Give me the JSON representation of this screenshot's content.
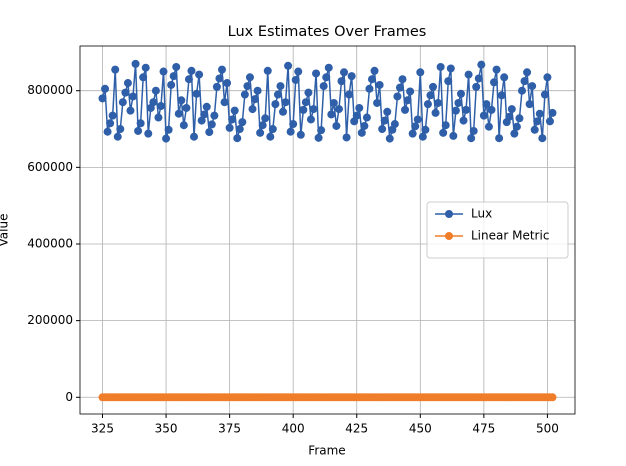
{
  "chart_data": {
    "type": "line",
    "title": "Lux Estimates Over Frames",
    "x_label": "Frame",
    "y_label": "Value",
    "x": [
      325,
      326,
      327,
      328,
      329,
      330,
      331,
      332,
      333,
      334,
      335,
      336,
      337,
      338,
      339,
      340,
      341,
      342,
      343,
      344,
      345,
      346,
      347,
      348,
      349,
      350,
      351,
      352,
      353,
      354,
      355,
      356,
      357,
      358,
      359,
      360,
      361,
      362,
      363,
      364,
      365,
      366,
      367,
      368,
      369,
      370,
      371,
      372,
      373,
      374,
      375,
      376,
      377,
      378,
      379,
      380,
      381,
      382,
      383,
      384,
      385,
      386,
      387,
      388,
      389,
      390,
      391,
      392,
      393,
      394,
      395,
      396,
      397,
      398,
      399,
      400,
      401,
      402,
      403,
      404,
      405,
      406,
      407,
      408,
      409,
      410,
      411,
      412,
      413,
      414,
      415,
      416,
      417,
      418,
      419,
      420,
      421,
      422,
      423,
      424,
      425,
      426,
      427,
      428,
      429,
      430,
      431,
      432,
      433,
      434,
      435,
      436,
      437,
      438,
      439,
      440,
      441,
      442,
      443,
      444,
      445,
      446,
      447,
      448,
      449,
      450,
      451,
      452,
      453,
      454,
      455,
      456,
      457,
      458,
      459,
      460,
      461,
      462,
      463,
      464,
      465,
      466,
      467,
      468,
      469,
      470,
      471,
      472,
      473,
      474,
      475,
      476,
      477,
      478,
      479,
      480,
      481,
      482,
      483,
      484,
      485,
      486,
      487,
      488,
      489,
      490,
      491,
      492,
      493,
      494,
      495,
      496,
      497,
      498,
      499,
      500,
      501,
      502
    ],
    "series": [
      {
        "name": "Lux",
        "color": "#2e5fa8",
        "values": [
          780000,
          805000,
          693000,
          715000,
          735000,
          855000,
          680000,
          700000,
          770000,
          795000,
          820000,
          748000,
          785000,
          870000,
          695000,
          715000,
          835000,
          860000,
          688000,
          755000,
          770000,
          800000,
          730000,
          760000,
          850000,
          675000,
          698000,
          815000,
          838000,
          862000,
          740000,
          775000,
          710000,
          755000,
          830000,
          852000,
          680000,
          792000,
          842000,
          722000,
          738000,
          758000,
          692000,
          712000,
          735000,
          810000,
          832000,
          855000,
          770000,
          820000,
          703000,
          725000,
          748000,
          676000,
          700000,
          718000,
          790000,
          812000,
          835000,
          752000,
          778000,
          800000,
          690000,
          710000,
          728000,
          852000,
          680000,
          700000,
          765000,
          790000,
          812000,
          745000,
          770000,
          865000,
          693000,
          713000,
          828000,
          850000,
          685000,
          750000,
          770000,
          795000,
          725000,
          752000,
          845000,
          677000,
          697000,
          812000,
          835000,
          860000,
          738000,
          768000,
          708000,
          752000,
          825000,
          848000,
          678000,
          790000,
          838000,
          720000,
          735000,
          755000,
          690000,
          708000,
          730000,
          805000,
          830000,
          852000,
          768000,
          815000,
          700000,
          722000,
          745000,
          675000,
          698000,
          713000,
          785000,
          808000,
          830000,
          750000,
          775000,
          798000,
          688000,
          707000,
          725000,
          848000,
          680000,
          698000,
          765000,
          788000,
          810000,
          742000,
          768000,
          862000,
          690000,
          710000,
          825000,
          858000,
          682000,
          748000,
          768000,
          792000,
          722000,
          750000,
          842000,
          676000,
          695000,
          810000,
          832000,
          868000,
          735000,
          765000,
          706000,
          750000,
          822000,
          855000,
          676000,
          788000,
          835000,
          718000,
          732000,
          752000,
          688000,
          706000,
          728000,
          800000,
          825000,
          848000,
          765000,
          812000,
          698000,
          720000,
          740000,
          676000,
          790000,
          835000,
          720000,
          742000
        ]
      },
      {
        "name": "Linear Metric",
        "color": "#ef7d2a",
        "values": [
          0,
          0,
          0,
          0,
          0,
          0,
          0,
          0,
          0,
          0,
          0,
          0,
          0,
          0,
          0,
          0,
          0,
          0,
          0,
          0,
          0,
          0,
          0,
          0,
          0,
          0,
          0,
          0,
          0,
          0,
          0,
          0,
          0,
          0,
          0,
          0,
          0,
          0,
          0,
          0,
          0,
          0,
          0,
          0,
          0,
          0,
          0,
          0,
          0,
          0,
          0,
          0,
          0,
          0,
          0,
          0,
          0,
          0,
          0,
          0,
          0,
          0,
          0,
          0,
          0,
          0,
          0,
          0,
          0,
          0,
          0,
          0,
          0,
          0,
          0,
          0,
          0,
          0,
          0,
          0,
          0,
          0,
          0,
          0,
          0,
          0,
          0,
          0,
          0,
          0,
          0,
          0,
          0,
          0,
          0,
          0,
          0,
          0,
          0,
          0,
          0,
          0,
          0,
          0,
          0,
          0,
          0,
          0,
          0,
          0,
          0,
          0,
          0,
          0,
          0,
          0,
          0,
          0,
          0,
          0,
          0,
          0,
          0,
          0,
          0,
          0,
          0,
          0,
          0,
          0,
          0,
          0,
          0,
          0,
          0,
          0,
          0,
          0,
          0,
          0,
          0,
          0,
          0,
          0,
          0,
          0,
          0,
          0,
          0,
          0,
          0,
          0,
          0,
          0,
          0,
          0,
          0,
          0,
          0,
          0,
          0,
          0,
          0,
          0,
          0,
          0,
          0,
          0,
          0,
          0,
          0,
          0,
          0,
          0,
          0,
          0,
          0,
          0
        ]
      }
    ],
    "xlim": [
      316.15,
      510.85
    ],
    "xticks": [
      325,
      350,
      375,
      400,
      425,
      450,
      475,
      500
    ],
    "ylim": [
      -43650,
      916650
    ],
    "yticks": [
      0,
      200000,
      400000,
      600000,
      800000
    ],
    "grid": true,
    "legend_loc": "center right"
  }
}
